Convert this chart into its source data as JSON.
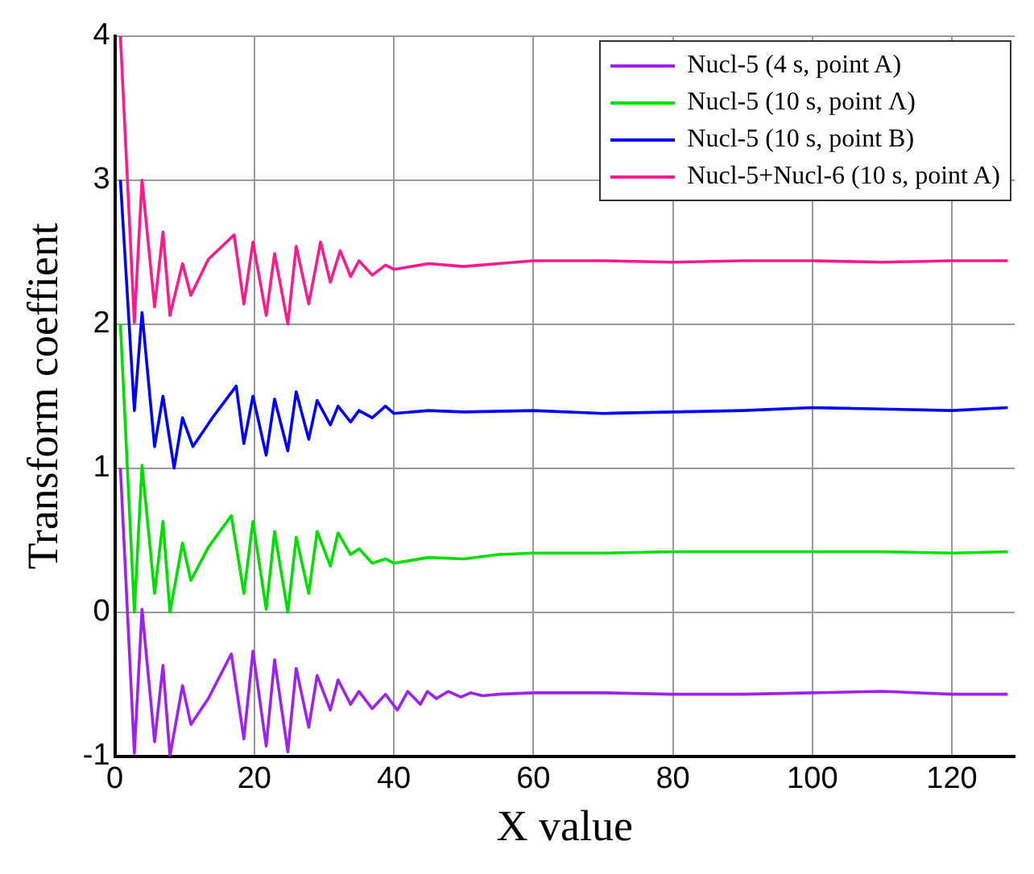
{
  "chart_data": {
    "type": "line",
    "xlabel": "X value",
    "ylabel": "Transform coeffient",
    "xlim": [
      0,
      129
    ],
    "xticks": [
      0,
      20,
      40,
      60,
      80,
      100,
      120
    ],
    "ylim": [
      -1,
      4
    ],
    "yticks": [
      -1,
      0,
      1,
      2,
      3,
      4
    ],
    "grid": true,
    "legend": "top right",
    "marker": "none",
    "line_style": "solid",
    "series": [
      {
        "name": "Nucl-5 (4 s, point A)",
        "color": "#a020f0",
        "x": [
          0.8,
          2.8,
          3.9,
          5.7,
          6.9,
          7.9,
          9.7,
          10.9,
          13.4,
          16.7,
          18.5,
          19.8,
          21.7,
          22.9,
          24.8,
          26,
          27.8,
          29,
          30.9,
          32,
          33.8,
          35,
          36.9,
          38.8,
          40.5,
          42,
          43.8,
          44.8,
          46.1,
          47.8,
          49.6,
          51,
          52.7,
          55,
          60,
          70,
          80,
          90,
          100,
          110,
          120,
          128
        ],
        "values": [
          1,
          -0.98,
          0.02,
          -0.9,
          -0.37,
          -1,
          -0.51,
          -0.78,
          -0.6,
          -0.29,
          -0.88,
          -0.27,
          -0.93,
          -0.33,
          -0.97,
          -0.39,
          -0.8,
          -0.44,
          -0.68,
          -0.47,
          -0.64,
          -0.55,
          -0.67,
          -0.57,
          -0.68,
          -0.55,
          -0.64,
          -0.55,
          -0.6,
          -0.55,
          -0.59,
          -0.56,
          -0.58,
          -0.57,
          -0.56,
          -0.56,
          -0.57,
          -0.57,
          -0.56,
          -0.55,
          -0.57,
          -0.57
        ]
      },
      {
        "name": "Nucl-5 (10 s, point Λ)",
        "color": "#00e000",
        "x": [
          0.8,
          2.8,
          3.9,
          5.7,
          6.9,
          7.9,
          9.7,
          10.9,
          13.4,
          16.7,
          18.5,
          19.8,
          21.7,
          22.9,
          24.8,
          26,
          27.8,
          29,
          30.9,
          32,
          33.8,
          35,
          36.9,
          38.8,
          40,
          45,
          50,
          55,
          60,
          70,
          80,
          90,
          100,
          110,
          120,
          128
        ],
        "values": [
          2,
          0,
          1.02,
          0.13,
          0.63,
          0,
          0.48,
          0.22,
          0.45,
          0.67,
          0.13,
          0.63,
          0.02,
          0.56,
          0,
          0.52,
          0.13,
          0.56,
          0.32,
          0.55,
          0.4,
          0.44,
          0.34,
          0.37,
          0.34,
          0.38,
          0.37,
          0.4,
          0.41,
          0.41,
          0.42,
          0.42,
          0.42,
          0.42,
          0.41,
          0.42
        ]
      },
      {
        "name": "Nucl-5 (10 s, point B)",
        "color": "#0000ff",
        "x": [
          0.8,
          2.8,
          3.9,
          5.7,
          6.9,
          8.5,
          9.7,
          11.2,
          14,
          17.4,
          18.5,
          19.8,
          21.7,
          22.9,
          24.8,
          26,
          27.8,
          29,
          30.9,
          32,
          33.8,
          35,
          36.9,
          38.8,
          40,
          45,
          50,
          60,
          70,
          80,
          90,
          100,
          110,
          120,
          128
        ],
        "values": [
          3,
          1.4,
          2.08,
          1.15,
          1.5,
          1,
          1.35,
          1.15,
          1.35,
          1.57,
          1.17,
          1.5,
          1.09,
          1.48,
          1.12,
          1.53,
          1.2,
          1.47,
          1.3,
          1.43,
          1.32,
          1.4,
          1.35,
          1.43,
          1.38,
          1.4,
          1.39,
          1.4,
          1.38,
          1.39,
          1.4,
          1.42,
          1.41,
          1.4,
          1.42
        ]
      },
      {
        "name": "Nucl-5+Nucl-6 (10 s, point A)",
        "color": "#ff1a8c",
        "x": [
          0.8,
          2.8,
          3.9,
          5.7,
          6.9,
          7.9,
          9.7,
          10.9,
          13.4,
          17.1,
          18.5,
          19.8,
          21.7,
          22.9,
          24.8,
          26,
          27.8,
          29.5,
          30.9,
          32.3,
          33.8,
          35,
          36.9,
          38.8,
          40,
          45,
          50,
          55,
          60,
          70,
          80,
          90,
          100,
          110,
          120,
          128
        ],
        "values": [
          4,
          2.01,
          3,
          2.12,
          2.64,
          2.06,
          2.42,
          2.2,
          2.45,
          2.62,
          2.14,
          2.57,
          2.06,
          2.49,
          2,
          2.54,
          2.14,
          2.57,
          2.29,
          2.51,
          2.33,
          2.44,
          2.34,
          2.41,
          2.38,
          2.42,
          2.4,
          2.42,
          2.44,
          2.44,
          2.43,
          2.44,
          2.44,
          2.43,
          2.44,
          2.44
        ]
      }
    ]
  }
}
